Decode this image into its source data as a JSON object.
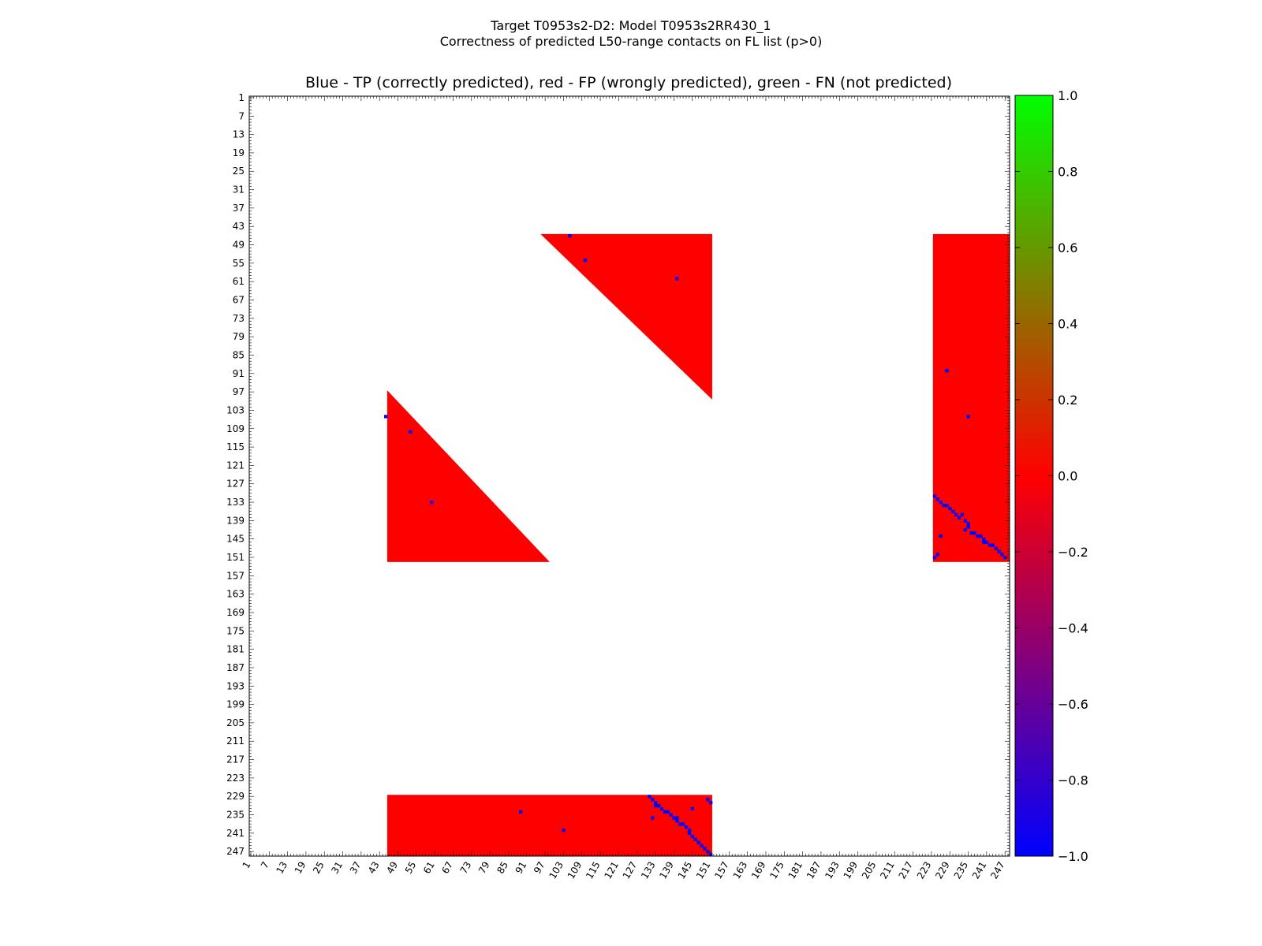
{
  "figure": {
    "suptitle_line1": "Target T0953s2-D2: Model T0953s2RR430_1",
    "suptitle_line2": "Correctness of predicted L50-range contacts on FL list (p>0)"
  },
  "chart_data": {
    "type": "heatmap",
    "title": "Blue - TP (correctly predicted), red - FP (wrongly predicted), green - FN (not predicted)",
    "xlabel": "",
    "ylabel": "",
    "xlim": [
      1,
      248
    ],
    "ylim": [
      1,
      248
    ],
    "y_axis_inverted": true,
    "tick_labels": [
      "1",
      "7",
      "13",
      "19",
      "25",
      "31",
      "37",
      "43",
      "49",
      "55",
      "61",
      "67",
      "73",
      "79",
      "85",
      "91",
      "97",
      "103",
      "109",
      "115",
      "121",
      "127",
      "133",
      "139",
      "145",
      "151",
      "157",
      "163",
      "169",
      "175",
      "181",
      "187",
      "193",
      "199",
      "205",
      "211",
      "217",
      "223",
      "229",
      "235",
      "241",
      "247"
    ],
    "colorbar": {
      "min": -1.0,
      "max": 1.0,
      "tick_labels": [
        "1.0",
        "0.8",
        "0.6",
        "0.4",
        "0.2",
        "0.0",
        "−0.2",
        "−0.4",
        "−0.6",
        "−0.8",
        "−1.0"
      ],
      "colors": {
        "low": "#0000ff",
        "mid": "#ff0000",
        "high": "#00ff00"
      }
    },
    "legend": {
      "tp_value": -1,
      "fp_value": 0,
      "fn_value": 1
    },
    "colors": {
      "tp": "#0000ff",
      "fp": "#ff0000",
      "fn": "#00ff00",
      "background": "#ffffff"
    },
    "regions": [
      {
        "kind": "fp_upper_triangle",
        "rows": [
          46,
          99
        ],
        "cols": [
          96,
          151
        ],
        "diagonal": {
          "row_start": 46,
          "col_start": 96
        }
      },
      {
        "kind": "fp_lower_triangle",
        "rows": [
          97,
          152
        ],
        "cols": [
          46,
          98
        ],
        "diagonal": {
          "row_start": 97,
          "col_start": 46
        }
      },
      {
        "kind": "fp_rectangle",
        "rows": [
          46,
          152
        ],
        "cols": [
          224,
          248
        ]
      },
      {
        "kind": "fp_rectangle",
        "rows": [
          229,
          248
        ],
        "cols": [
          46,
          151
        ]
      }
    ],
    "tp_contacts": [
      [
        46,
        105
      ],
      [
        54,
        110
      ],
      [
        60,
        140
      ],
      [
        90,
        228
      ],
      [
        105,
        45
      ],
      [
        105,
        235
      ],
      [
        110,
        53
      ],
      [
        133,
        60
      ],
      [
        90,
        228
      ],
      [
        131,
        224
      ],
      [
        132,
        225
      ],
      [
        133,
        226
      ],
      [
        134,
        227
      ],
      [
        134,
        228
      ],
      [
        135,
        229
      ],
      [
        136,
        230
      ],
      [
        137,
        231
      ],
      [
        137,
        233
      ],
      [
        138,
        232
      ],
      [
        139,
        234
      ],
      [
        140,
        235
      ],
      [
        141,
        235
      ],
      [
        142,
        234
      ],
      [
        143,
        236
      ],
      [
        143,
        237
      ],
      [
        144,
        238
      ],
      [
        144,
        239
      ],
      [
        145,
        240
      ],
      [
        146,
        240
      ],
      [
        146,
        241
      ],
      [
        147,
        242
      ],
      [
        147,
        243
      ],
      [
        148,
        244
      ],
      [
        149,
        245
      ],
      [
        150,
        246
      ],
      [
        151,
        247
      ],
      [
        150,
        225
      ],
      [
        151,
        224
      ],
      [
        144,
        226
      ],
      [
        229,
        131
      ],
      [
        230,
        132
      ],
      [
        231,
        133
      ],
      [
        232,
        133
      ],
      [
        232,
        134
      ],
      [
        233,
        135
      ],
      [
        234,
        136
      ],
      [
        234,
        137
      ],
      [
        235,
        138
      ],
      [
        236,
        139
      ],
      [
        236,
        140
      ],
      [
        237,
        140
      ],
      [
        238,
        141
      ],
      [
        238,
        142
      ],
      [
        239,
        143
      ],
      [
        240,
        144
      ],
      [
        241,
        144
      ],
      [
        242,
        145
      ],
      [
        243,
        146
      ],
      [
        244,
        147
      ],
      [
        245,
        148
      ],
      [
        246,
        149
      ],
      [
        247,
        150
      ],
      [
        248,
        151
      ],
      [
        230,
        150
      ],
      [
        231,
        151
      ],
      [
        234,
        89
      ],
      [
        240,
        103
      ],
      [
        236,
        132
      ],
      [
        233,
        145
      ]
    ],
    "fn_contacts": []
  }
}
